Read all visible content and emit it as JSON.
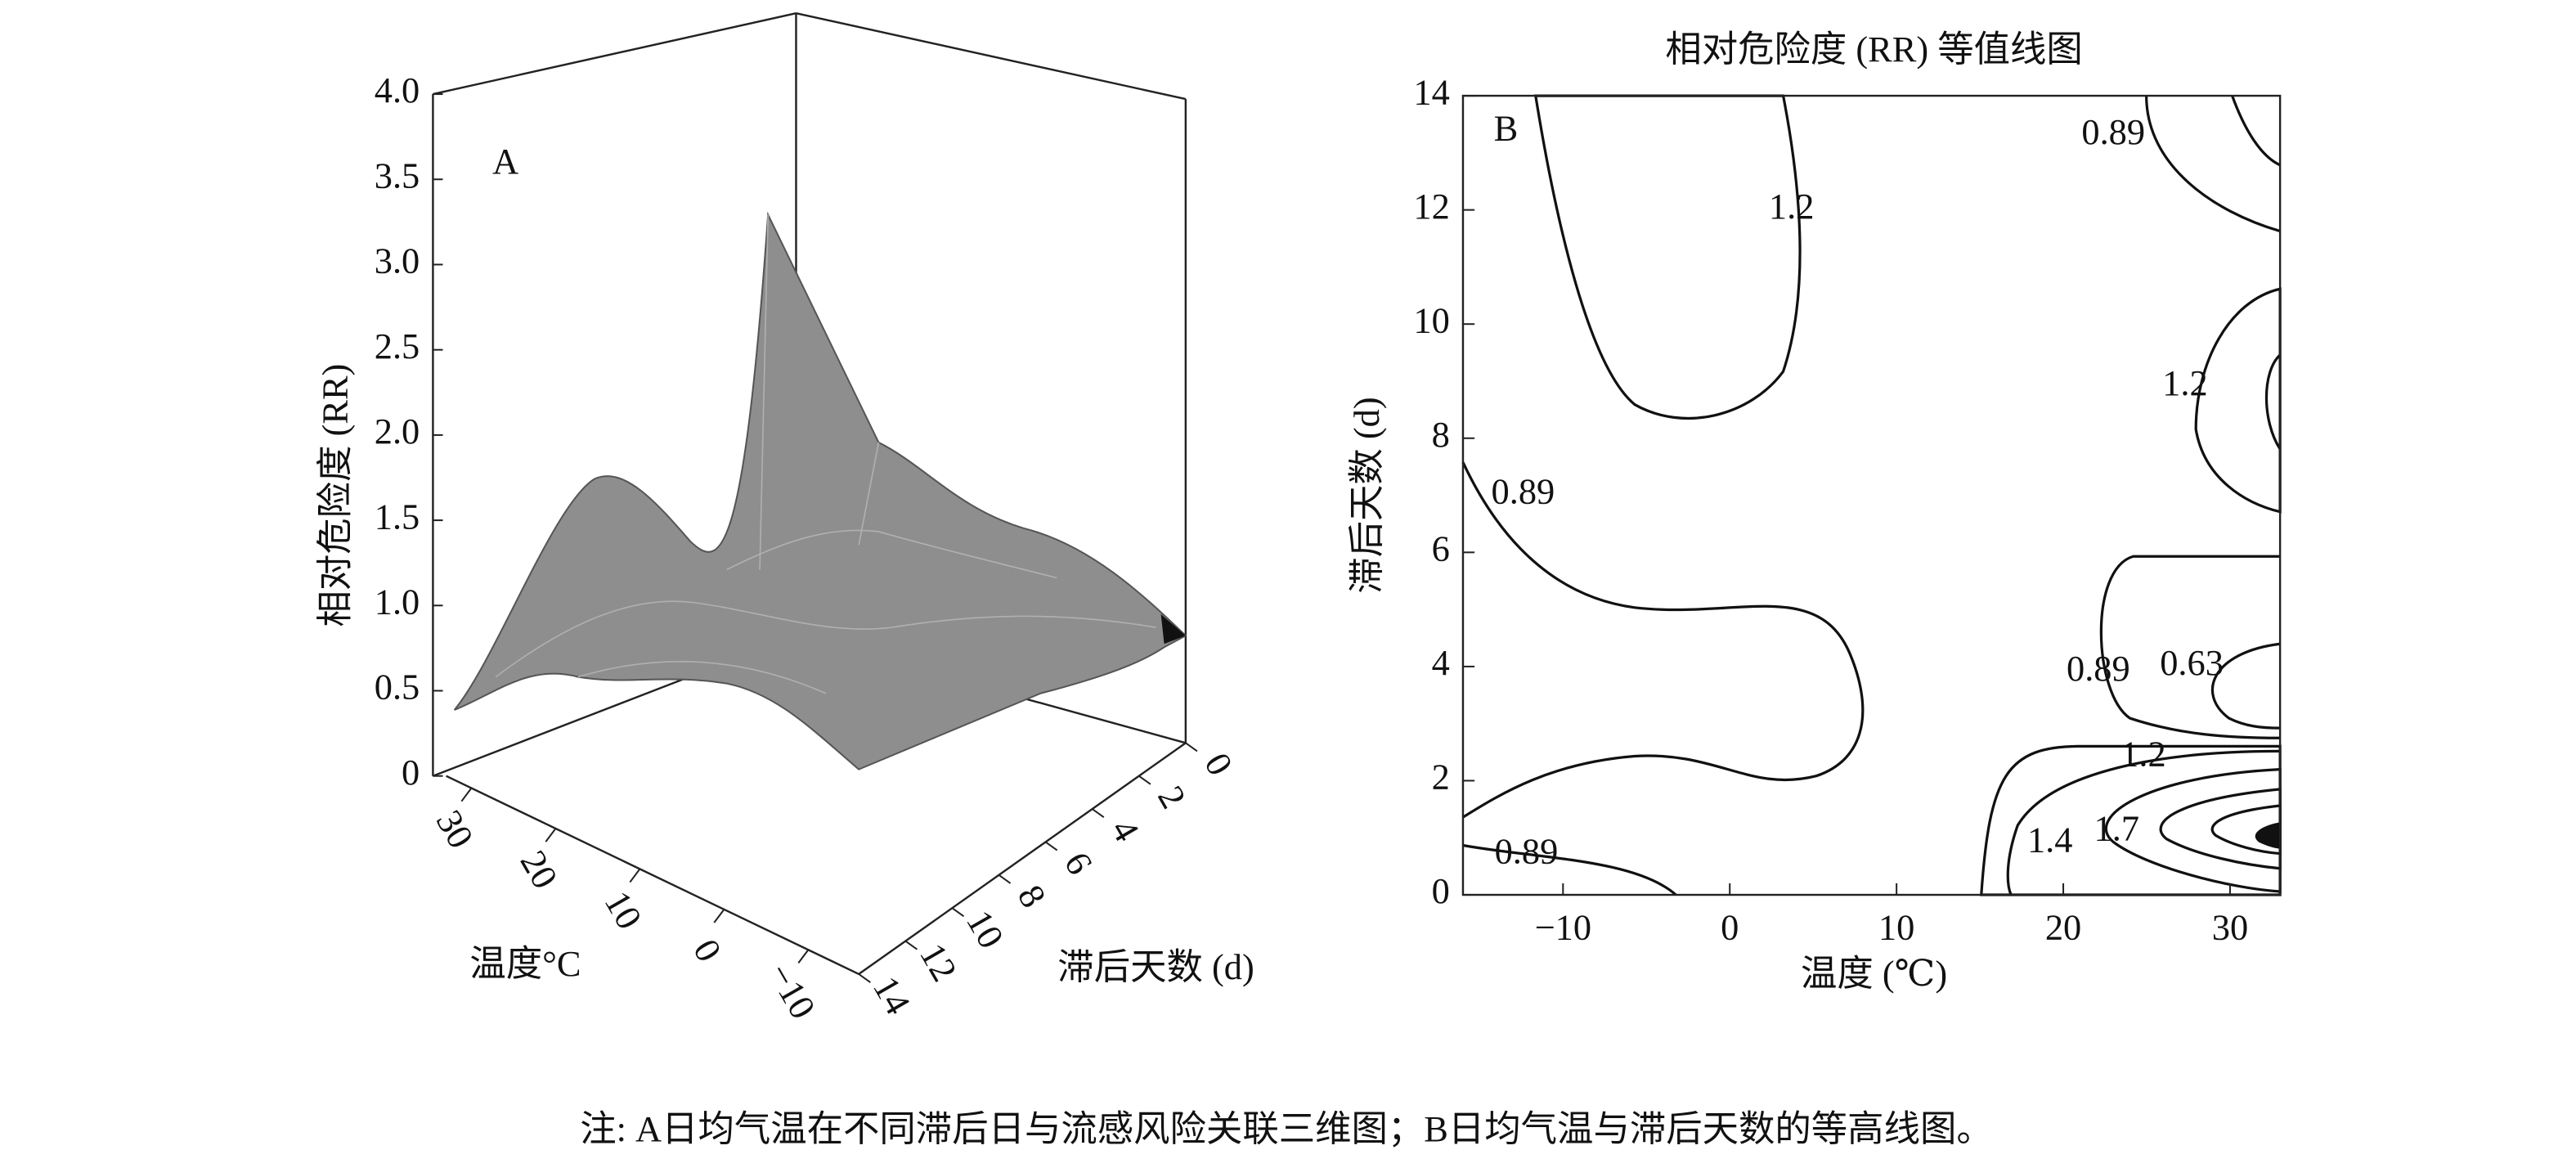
{
  "chart_data": [
    {
      "type": "surface3d",
      "panel_label": "A",
      "xlabel": "温度°C",
      "ylabel": "滞后天数 (d)",
      "zlabel": "相对危险度 (RR)",
      "xlim": [
        -16,
        33
      ],
      "xticks": [
        {
          "value": -10,
          "label": "−10"
        },
        0,
        10,
        20,
        30
      ],
      "ylim": [
        0,
        14
      ],
      "yticks": [
        0,
        2,
        4,
        6,
        8,
        10,
        12,
        14
      ],
      "zlim": [
        0,
        4
      ],
      "zticks": [
        0,
        0.5,
        {
          "value": 1,
          "label": "1.0"
        },
        1.5,
        {
          "value": 2,
          "label": "2.0"
        },
        2.5,
        {
          "value": 3,
          "label": "3.0"
        },
        3.5,
        {
          "value": 4,
          "label": "4.0"
        }
      ]
    },
    {
      "type": "contour",
      "title": "相对危险度 (RR) 等值线图",
      "panel_label": "B",
      "xlabel": "温度 (℃)",
      "ylabel": "滞后天数 (d)",
      "xlim": [
        -16,
        33
      ],
      "xticks": [
        {
          "value": -10,
          "label": "−10"
        },
        0,
        10,
        20,
        30
      ],
      "ylim": [
        0,
        14
      ],
      "yticks": [
        0,
        2,
        4,
        6,
        8,
        10,
        12,
        14
      ],
      "contour_labels": [
        {
          "value": 0.89,
          "x": 23.0,
          "y": 13.3
        },
        {
          "value": 1.2,
          "x": 3.7,
          "y": 12.0
        },
        {
          "value": 1.2,
          "x": 27.3,
          "y": 8.9
        },
        {
          "value": 0.89,
          "x": -12.4,
          "y": 7.0
        },
        {
          "value": 0.89,
          "x": 22.1,
          "y": 3.9
        },
        {
          "value": 0.63,
          "x": 27.7,
          "y": 4.0
        },
        {
          "value": 1.2,
          "x": 24.8,
          "y": 2.4
        },
        {
          "value": 1.4,
          "x": 19.2,
          "y": 0.9
        },
        {
          "value": 1.7,
          "x": 23.2,
          "y": 1.1
        },
        {
          "value": 0.89,
          "x": -12.2,
          "y": 0.7
        }
      ]
    }
  ],
  "caption": "注: A日均气温在不同滞后日与流感风险关联三维图；B日均气温与滞后天数的等高线图。"
}
